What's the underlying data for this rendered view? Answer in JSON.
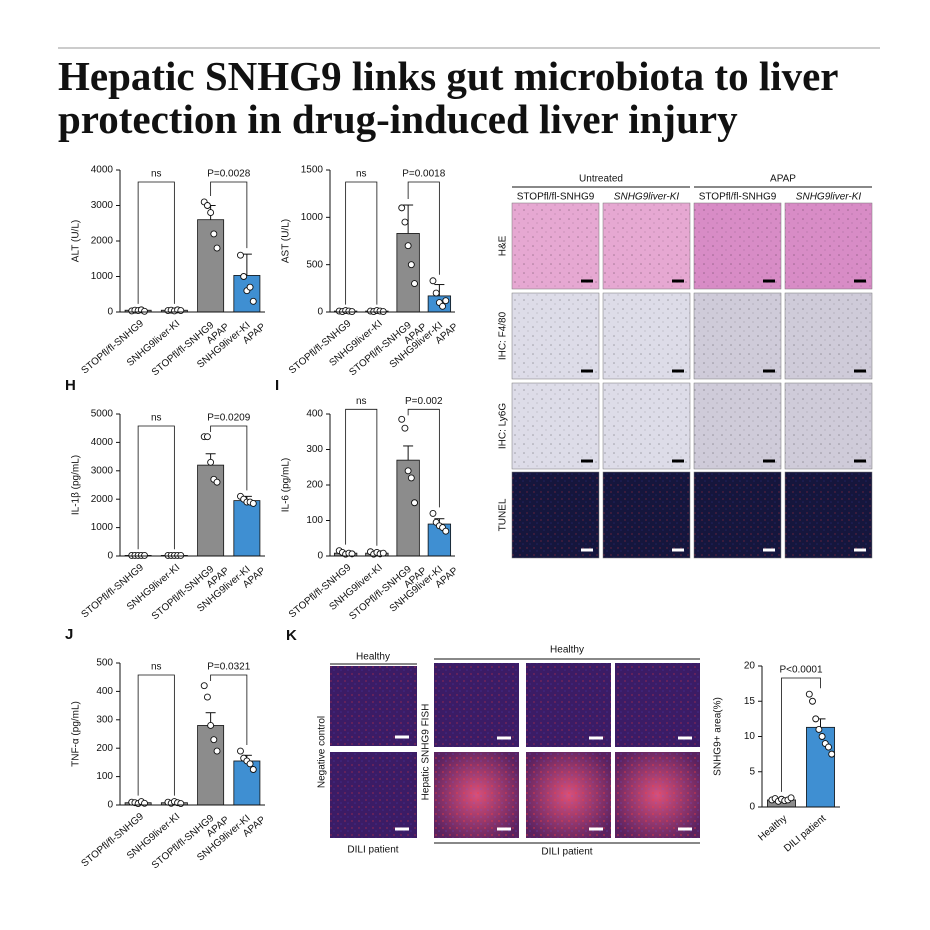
{
  "title_lines": [
    "Hepatic SNHG9 links gut microbiota to liver",
    "protection in drug-induced liver injury"
  ],
  "chart_data": [
    {
      "type": "bar",
      "ylabel": "ALT (U/L)",
      "wrap_labels": true,
      "categories": [
        "STOPfl/fl-SNHG9",
        "SNHG9liver-KI",
        "STOPfl/fl-SNHG9 APAP",
        "SNHG9liver-KI APAP"
      ],
      "colors": [
        "#8c8c8c",
        "#8c8c8c",
        "#8c8c8c",
        "#3f8fd2"
      ],
      "values": [
        50,
        50,
        2600,
        1030
      ],
      "errors": [
        10,
        10,
        400,
        600
      ],
      "points": [
        [
          30,
          50,
          40,
          60,
          20
        ],
        [
          40,
          50,
          30,
          60,
          40
        ],
        [
          3100,
          3000,
          2800,
          2200,
          1800
        ],
        [
          1600,
          1000,
          600,
          700,
          300
        ]
      ],
      "ylim": [
        0,
        4000
      ],
      "yticks": [
        0,
        1000,
        2000,
        3000,
        4000
      ],
      "annotations": [
        "ns",
        "P=0.0028"
      ]
    },
    {
      "type": "bar",
      "ylabel": "AST (U/L)",
      "wrap_labels": true,
      "categories": [
        "STOPfl/fl-SNHG9",
        "SNHG9liver-KI",
        "STOPfl/fl-SNHG9 APAP",
        "SNHG9liver-KI APAP"
      ],
      "colors": [
        "#8c8c8c",
        "#8c8c8c",
        "#8c8c8c",
        "#3f8fd2"
      ],
      "values": [
        10,
        10,
        830,
        170
      ],
      "errors": [
        3,
        3,
        300,
        120
      ],
      "points": [
        [
          10,
          5,
          15,
          10,
          5
        ],
        [
          10,
          5,
          15,
          10,
          5
        ],
        [
          1100,
          950,
          700,
          500,
          300
        ],
        [
          330,
          200,
          100,
          60,
          120
        ]
      ],
      "ylim": [
        0,
        1500
      ],
      "yticks": [
        0,
        500,
        1000,
        1500
      ],
      "annotations": [
        "ns",
        "P=0.0018"
      ]
    },
    {
      "type": "bar",
      "panel": "H",
      "ylabel": "IL-1β (pg/mL)",
      "wrap_labels": true,
      "categories": [
        "STOPfl/fl-SNHG9",
        "SNHG9liver-KI",
        "STOPfl/fl-SNHG9 APAP",
        "SNHG9liver-KI APAP"
      ],
      "colors": [
        "#8c8c8c",
        "#8c8c8c",
        "#8c8c8c",
        "#3f8fd2"
      ],
      "values": [
        20,
        20,
        3200,
        1950
      ],
      "errors": [
        5,
        5,
        400,
        150
      ],
      "points": [
        [
          20,
          20,
          20,
          20,
          20
        ],
        [
          20,
          20,
          20,
          20,
          20
        ],
        [
          4200,
          4200,
          3300,
          2700,
          2600
        ],
        [
          2100,
          2000,
          1900,
          1900,
          1850
        ]
      ],
      "ylim": [
        0,
        5000
      ],
      "yticks": [
        0,
        1000,
        2000,
        3000,
        4000,
        5000
      ],
      "annotations": [
        "ns",
        "P=0.0209"
      ]
    },
    {
      "type": "bar",
      "panel": "I",
      "ylabel": "IL-6 (pg/mL)",
      "wrap_labels": true,
      "categories": [
        "STOPfl/fl-SNHG9",
        "SNHG9liver-KI",
        "STOPfl/fl-SNHG9 APAP",
        "SNHG9liver-KI APAP"
      ],
      "colors": [
        "#8c8c8c",
        "#8c8c8c",
        "#8c8c8c",
        "#3f8fd2"
      ],
      "values": [
        8,
        8,
        270,
        90
      ],
      "errors": [
        2,
        2,
        40,
        15
      ],
      "points": [
        [
          15,
          10,
          5,
          8,
          6
        ],
        [
          12,
          5,
          10,
          6,
          8
        ],
        [
          385,
          360,
          240,
          220,
          150
        ],
        [
          120,
          95,
          85,
          80,
          70
        ]
      ],
      "ylim": [
        0,
        400
      ],
      "yticks": [
        0,
        100,
        200,
        300,
        400
      ],
      "annotations": [
        "ns",
        "P=0.002"
      ]
    },
    {
      "type": "bar",
      "panel": "J",
      "ylabel": "TNF-α (pg/mL)",
      "wrap_labels": true,
      "categories": [
        "STOPfl/fl-SNHG9",
        "SNHG9liver-KI",
        "STOPfl/fl-SNHG9 APAP",
        "SNHG9liver-KI APAP"
      ],
      "colors": [
        "#8c8c8c",
        "#8c8c8c",
        "#8c8c8c",
        "#3f8fd2"
      ],
      "values": [
        8,
        8,
        280,
        155
      ],
      "errors": [
        2,
        2,
        45,
        20
      ],
      "points": [
        [
          10,
          8,
          5,
          12,
          6
        ],
        [
          10,
          6,
          12,
          8,
          5
        ],
        [
          420,
          380,
          280,
          230,
          190
        ],
        [
          190,
          165,
          155,
          145,
          125
        ]
      ],
      "ylim": [
        0,
        500
      ],
      "yticks": [
        0,
        100,
        200,
        300,
        400,
        500
      ],
      "annotations": [
        "ns",
        "P=0.0321"
      ]
    },
    {
      "type": "bar",
      "ylabel": "SNHG9+ area(%)",
      "wrap_labels": false,
      "categories": [
        "Healthy",
        "DILI patient"
      ],
      "colors": [
        "#8c8c8c",
        "#3f8fd2"
      ],
      "values": [
        1,
        11.3
      ],
      "errors": [
        0.2,
        1.2
      ],
      "points": [
        [
          1,
          1.2,
          0.8,
          1.1,
          0.9,
          1,
          1.3
        ],
        [
          16,
          15,
          12.5,
          11,
          10,
          9,
          8.5,
          7.5
        ]
      ],
      "ylim": [
        0,
        20
      ],
      "yticks": [
        0,
        5,
        10,
        15,
        20
      ],
      "annotations": [
        "P<0.0001"
      ]
    }
  ],
  "histology": {
    "groups": [
      "Untreated",
      "APAP"
    ],
    "columns": [
      "STOPfl/fl-SNHG9",
      "SNHG9liver-KI",
      "STOPfl/fl-SNHG9",
      "SNHG9liver-KI"
    ],
    "rows": [
      "H&E",
      "IHC: F4/80",
      "IHC: Ly6G",
      "TUNEL"
    ]
  },
  "fish": {
    "panel": "K",
    "negative_header": "Healthy",
    "negative_label": "Negative control",
    "negative_footer": "DILI patient",
    "fish_header": "Healthy",
    "fish_label": "Hepatic SNHG9 FISH",
    "fish_footer": "DILI patient"
  }
}
